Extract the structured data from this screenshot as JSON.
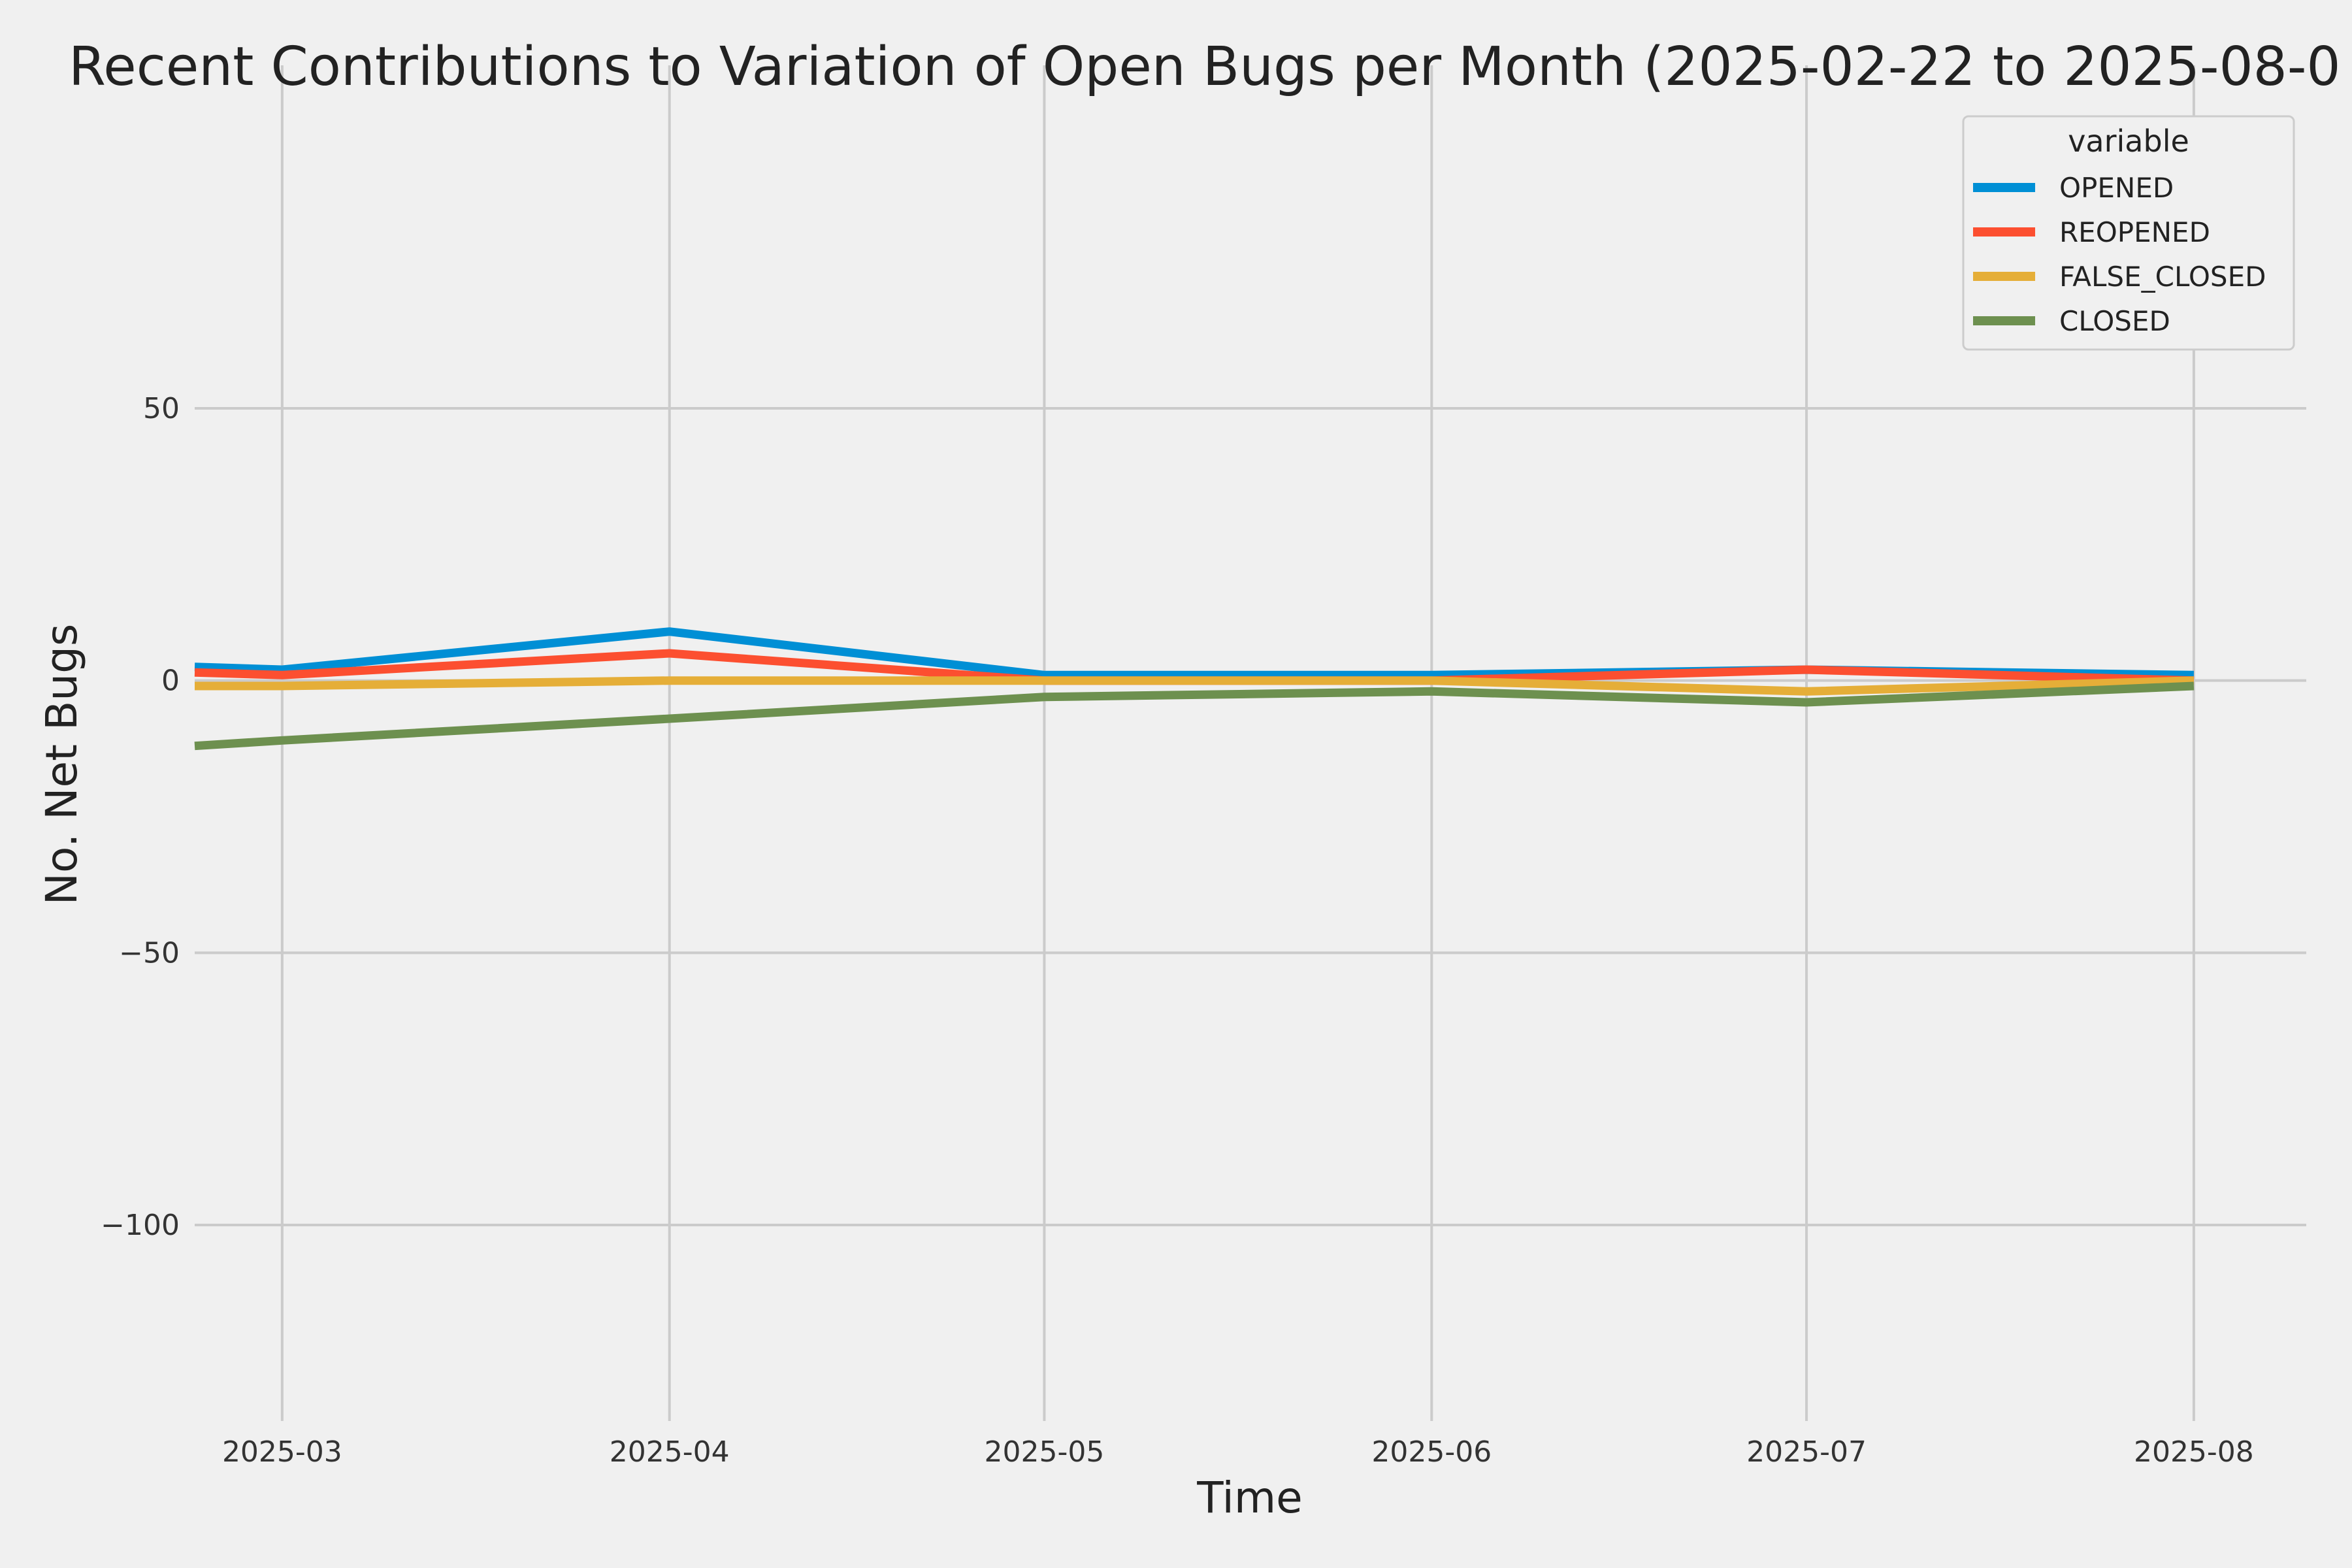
{
  "chart_data": {
    "type": "line",
    "title": "Recent Contributions to Variation of Open Bugs per Month (2025-02-22 to 2025-08-0",
    "xlabel": "Time",
    "ylabel": "No. Net Bugs",
    "x": [
      "2025-02-22",
      "2025-03-01",
      "2025-04-01",
      "2025-05-01",
      "2025-06-01",
      "2025-07-01",
      "2025-08-01"
    ],
    "x_ticks": [
      "2025-03",
      "2025-04",
      "2025-05",
      "2025-06",
      "2025-07",
      "2025-08"
    ],
    "xlim": [
      "2025-02-22",
      "2025-08-10"
    ],
    "y_ticks": [
      50,
      0,
      -50,
      -100
    ],
    "y_tick_labels": [
      "50",
      "0",
      "−50",
      "−100"
    ],
    "ylim": [
      -136,
      113
    ],
    "grid": true,
    "legend": {
      "title": "variable",
      "placement": "top-right"
    },
    "series": [
      {
        "name": "OPENED",
        "color": "#008fd5",
        "values": [
          2.5,
          2,
          9,
          1,
          1,
          2,
          1
        ]
      },
      {
        "name": "REOPENED",
        "color": "#fc4f30",
        "values": [
          1.5,
          1,
          5,
          0,
          0,
          2,
          0
        ]
      },
      {
        "name": "FALSE_CLOSED",
        "color": "#e5ae38",
        "values": [
          -1,
          -1,
          0,
          0,
          0,
          -2,
          0
        ]
      },
      {
        "name": "CLOSED",
        "color": "#6d904f",
        "values": [
          -12,
          -11,
          -7,
          -3,
          -2,
          -4,
          -1
        ]
      }
    ]
  }
}
